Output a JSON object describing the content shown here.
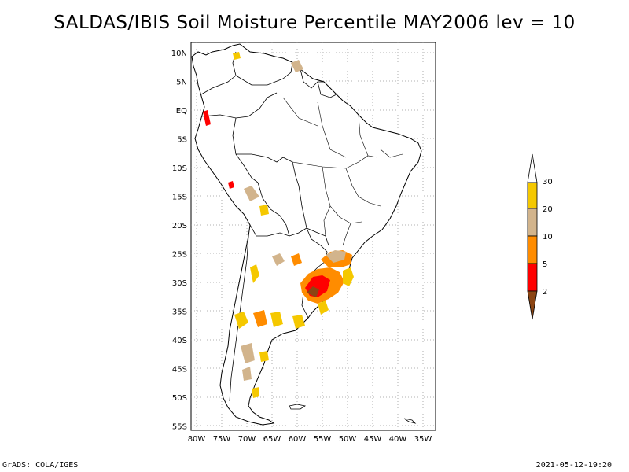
{
  "title": "SALDAS/IBIS Soil Moisture Percentile MAY2006 lev = 10",
  "footer": {
    "left": "GrADS: COLA/IGES",
    "right": "2021-05-12-19:20"
  },
  "map": {
    "region": "South America",
    "lon_range": [
      -80,
      -32
    ],
    "lat_range": [
      -56,
      12
    ],
    "lon_ticks": [
      "80W",
      "75W",
      "70W",
      "65W",
      "60W",
      "55W",
      "50W",
      "45W",
      "40W",
      "35W"
    ],
    "lat_ticks": [
      "10N",
      "5N",
      "EQ",
      "5S",
      "10S",
      "15S",
      "20S",
      "25S",
      "30S",
      "35S",
      "40S",
      "45S",
      "50S",
      "55S"
    ],
    "grid": true,
    "land_color": "#ffffff",
    "outline_color": "#000000"
  },
  "colorbar": {
    "labels": [
      "30",
      "20",
      "10",
      "5",
      "2"
    ],
    "colors": {
      "over_30": "#ffffff",
      "20_30": "#f5c800",
      "10_20": "#d2b48c",
      "5_10": "#ff8c00",
      "2_5": "#ff0000",
      "under_2": "#8b4513"
    }
  }
}
